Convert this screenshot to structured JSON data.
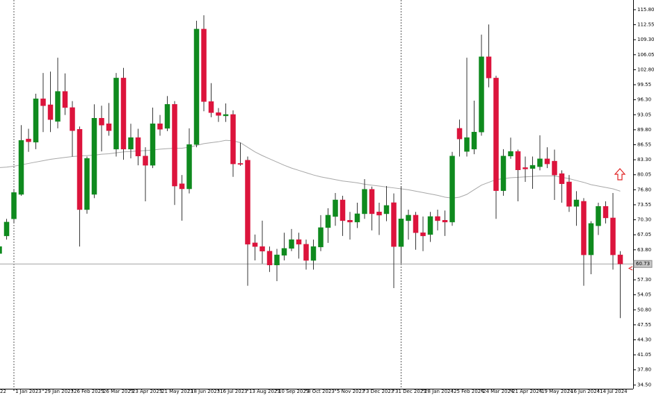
{
  "chart_data": {
    "type": "candlestick",
    "x_cut_label": "22",
    "categories": [
      null,
      null,
      "1 Jan 2023",
      null,
      null,
      null,
      "29 Jan 2023",
      null,
      null,
      null,
      "26 Feb 2023",
      null,
      null,
      null,
      "26 Mar 2023",
      null,
      null,
      null,
      "23 Apr 2023",
      null,
      null,
      null,
      "21 May 2023",
      null,
      null,
      null,
      "18 Jun 2023",
      null,
      null,
      null,
      "16 Jul 2023",
      null,
      null,
      null,
      "13 Aug 2023",
      null,
      null,
      null,
      "10 Sep 2023",
      null,
      null,
      null,
      "8 Oct 2023",
      null,
      null,
      null,
      "5 Nov 2023",
      null,
      null,
      null,
      "3 Dec 2023",
      null,
      null,
      null,
      "31 Dec 2023",
      null,
      null,
      null,
      "28 Jan 2024",
      null,
      null,
      null,
      "25 Feb 2024",
      null,
      null,
      null,
      "24 Mar 2024",
      null,
      null,
      null,
      "21 Apr 2024",
      null,
      null,
      null,
      "19 May 2024",
      null,
      null,
      null,
      "16 Jun 2024",
      null,
      null,
      null,
      "14 Jul 2024",
      null,
      null,
      null
    ],
    "open": [
      63,
      66.8,
      70.5,
      75.8,
      87.8,
      87.1,
      96.5,
      95.2,
      91.6,
      98.1,
      94.6,
      89.9,
      72.5,
      75.8,
      92.3,
      91.1,
      85.6,
      101,
      85.6,
      88.1,
      84.1,
      82.1,
      91.1,
      90.1,
      95.3,
      78.1,
      77,
      86.6,
      111.6,
      95.9,
      93.5,
      92.8,
      93.1,
      82.5,
      83.2,
      65.3,
      64.5,
      63.5,
      60.5,
      62.6,
      64.1,
      66,
      65,
      61.5,
      64.4,
      68.6,
      71,
      74.6,
      70.2,
      69.8,
      71.6,
      76.9,
      72,
      71.6,
      74,
      64.5,
      70.1,
      71.3,
      67.5,
      67.1,
      71,
      70.2,
      69.8,
      90.1,
      85.1,
      85.6,
      89.3,
      105.6,
      101,
      76.6,
      84.1,
      85.1,
      81.6,
      81.4,
      81.8,
      83.5,
      83,
      80.3,
      78.5,
      73.2,
      74.3,
      62.7,
      69,
      73.2,
      70.7,
      62.7
    ],
    "high": [
      66,
      70.5,
      77,
      90.8,
      90,
      97.6,
      102.1,
      102.4,
      105.4,
      102,
      96,
      90.5,
      84,
      95.3,
      95,
      95.6,
      102.1,
      103.2,
      91.1,
      90,
      86,
      94.6,
      93,
      97.1,
      96,
      80,
      90.1,
      113.4,
      114.6,
      99.9,
      94.5,
      95.5,
      94,
      87,
      84,
      67.1,
      70.1,
      64.5,
      64,
      67.5,
      68.3,
      67.5,
      66,
      66,
      71.3,
      72.8,
      76.1,
      75.5,
      72,
      74,
      79.1,
      77.5,
      74,
      77.6,
      76,
      77.6,
      72.5,
      72,
      71,
      72,
      72.5,
      72.3,
      85,
      92,
      105.4,
      96.1,
      110.4,
      112.6,
      101.5,
      85.6,
      88.1,
      85.5,
      84,
      84,
      88.6,
      86,
      85.5,
      81,
      80,
      76.5,
      75,
      70,
      74,
      74.3,
      76.1,
      63.5
    ],
    "low": [
      62,
      66,
      69.5,
      75.5,
      85,
      85.6,
      89.3,
      89.3,
      90.1,
      93,
      84,
      64.5,
      71.6,
      75,
      85.1,
      88.5,
      84,
      83.3,
      83.6,
      82.1,
      74.3,
      81.5,
      88.5,
      89.5,
      73.5,
      70.1,
      76,
      86,
      93.8,
      92.5,
      91.5,
      91.5,
      79.6,
      82,
      56,
      61.5,
      60.8,
      59,
      57,
      61.5,
      63.5,
      61.9,
      59.5,
      59.5,
      63.5,
      65.3,
      69,
      66.8,
      66,
      68.5,
      70.5,
      68,
      67,
      70,
      55.5,
      60.8,
      66,
      63.8,
      63.5,
      65.5,
      68,
      66.8,
      69,
      84,
      84,
      84.5,
      88.5,
      99,
      70.5,
      75.5,
      83.5,
      74.3,
      78.5,
      77,
      81,
      81.5,
      74.6,
      74,
      72,
      69,
      56,
      58.5,
      67,
      69.5,
      59.5,
      49
    ],
    "close": [
      64.5,
      69.8,
      76.2,
      87.5,
      87.2,
      96.5,
      95,
      92,
      98.1,
      94.6,
      89.6,
      72.5,
      83.6,
      92.3,
      90.8,
      89.6,
      101,
      85.6,
      88.1,
      84.1,
      82.1,
      91.1,
      89.9,
      95.3,
      77.6,
      77,
      86.6,
      111.6,
      95.9,
      93.5,
      92.9,
      93.1,
      82.4,
      82.3,
      65,
      64.5,
      63.5,
      60.5,
      62.7,
      64.1,
      66,
      65,
      61.5,
      64.5,
      68.6,
      71.3,
      74.6,
      70.1,
      69.8,
      71.6,
      76.9,
      71.6,
      71.3,
      73.4,
      64.5,
      70.5,
      71.3,
      67.5,
      66.8,
      71,
      70.1,
      69.8,
      84.1,
      87.8,
      88.1,
      89.3,
      105.6,
      101,
      76.6,
      84.1,
      85.1,
      81.1,
      81.3,
      82.1,
      83.5,
      82.4,
      80,
      78.1,
      73.2,
      74.6,
      62.7,
      69.5,
      73.2,
      70.7,
      62.7,
      60.73
    ],
    "up_color": "#0f8a1e",
    "down_color": "#dc143c",
    "moving_average": {
      "color": "#a6a6a6",
      "values": [
        81.6,
        81.7,
        81.9,
        82.2,
        82.5,
        82.8,
        83.1,
        83.4,
        83.6,
        83.8,
        84.0,
        84.1,
        84.2,
        84.3,
        84.5,
        84.6,
        84.8,
        85.0,
        85.1,
        85.2,
        85.3,
        85.4,
        85.6,
        85.7,
        85.8,
        85.8,
        86.0,
        86.4,
        86.8,
        87.0,
        87.2,
        87.5,
        87.4,
        87.0,
        86.0,
        85.0,
        84.2,
        83.5,
        82.8,
        82.1,
        81.5,
        81.0,
        80.5,
        80.0,
        79.6,
        79.3,
        79.0,
        78.7,
        78.5,
        78.3,
        78.0,
        77.8,
        77.6,
        77.4,
        77.2,
        77.0,
        76.8,
        76.5,
        76.2,
        75.9,
        75.6,
        75.2,
        75.0,
        75.2,
        75.8,
        76.8,
        77.8,
        78.4,
        79.0,
        79.2,
        79.4,
        79.5,
        79.6,
        79.7,
        79.8,
        79.8,
        79.8,
        79.5,
        79.2,
        78.8,
        78.4,
        77.9,
        77.6,
        77.3,
        77.0,
        76.5
      ]
    },
    "current_price": 60.73,
    "ylim": [
      33.7,
      117.9
    ],
    "yticks": [
      {
        "value": 115.8,
        "label": "115.80"
      },
      112.55,
      {
        "value": 109.3,
        "label": "109.30"
      },
      106.05,
      {
        "value": 102.8,
        "label": "102.80"
      },
      99.55,
      {
        "value": 96.3,
        "label": "96.30"
      },
      93.05,
      {
        "value": 89.8,
        "label": "89.80"
      },
      86.55,
      {
        "value": 83.3,
        "label": "83.30"
      },
      80.05,
      {
        "value": 76.8,
        "label": "76.80"
      },
      73.55,
      {
        "value": 70.3,
        "label": "70.30"
      },
      67.05,
      {
        "value": 63.8,
        "label": "63.80"
      },
      {
        "value": 57.3,
        "label": "57.30"
      },
      54.05,
      {
        "value": 50.8,
        "label": "50.80"
      },
      47.55,
      {
        "value": 44.3,
        "label": "44.30"
      },
      41.05,
      {
        "value": 37.8,
        "label": "37.80"
      },
      {
        "value": 34.5,
        "label": "34.50"
      }
    ]
  }
}
